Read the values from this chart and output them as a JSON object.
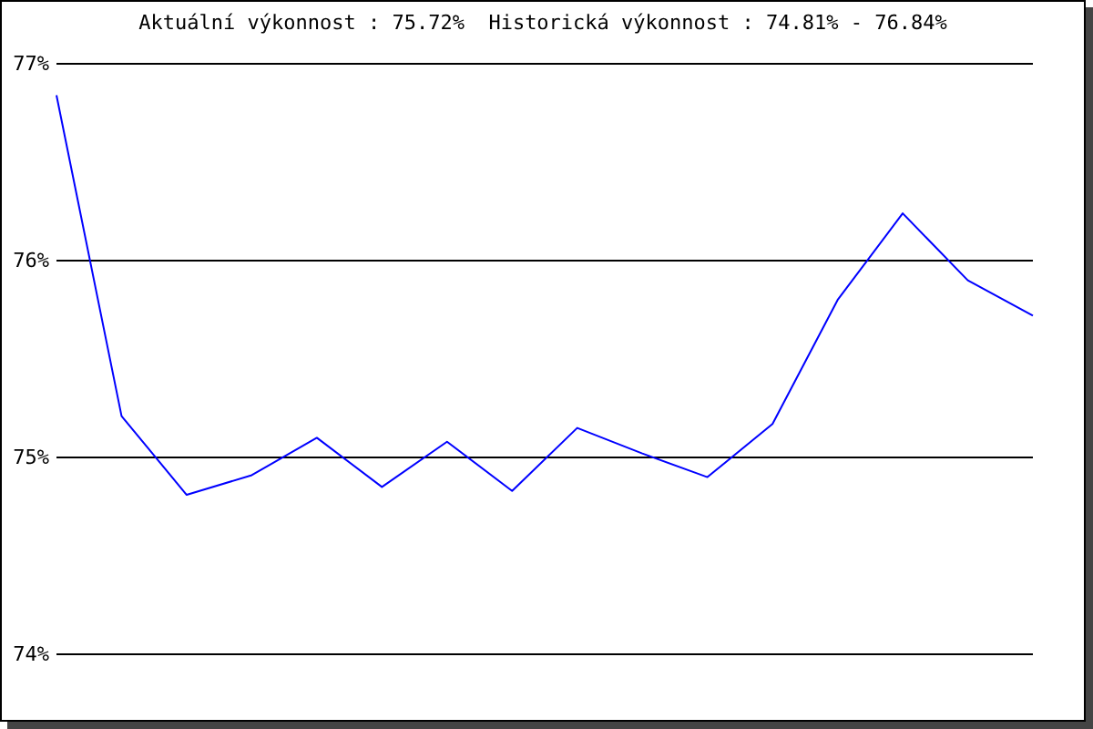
{
  "chart_data": {
    "type": "line",
    "title": "Aktuální výkonnost : 75.72%  Historická výkonnost : 74.81% - 76.84%",
    "categories": [
      null,
      null,
      null,
      null,
      null,
      null,
      null,
      null,
      null,
      null,
      null,
      null,
      null,
      null,
      null,
      null
    ],
    "series": [
      {
        "color": "#0000ff",
        "values": [
          76.84,
          75.21,
          74.81,
          74.91,
          75.1,
          74.85,
          75.08,
          74.83,
          75.15,
          75.02,
          74.9,
          75.17,
          75.8,
          76.24,
          75.9,
          75.72
        ]
      }
    ],
    "ylim": [
      74,
      77
    ],
    "yticks": [
      {
        "value": 74,
        "label": "74%"
      },
      {
        "value": 75,
        "label": "75%"
      },
      {
        "value": 76,
        "label": "76%"
      },
      {
        "value": 77,
        "label": "77%"
      }
    ],
    "grid": "y",
    "tick_labels": "y",
    "marker": "none",
    "line_style": "solid"
  }
}
